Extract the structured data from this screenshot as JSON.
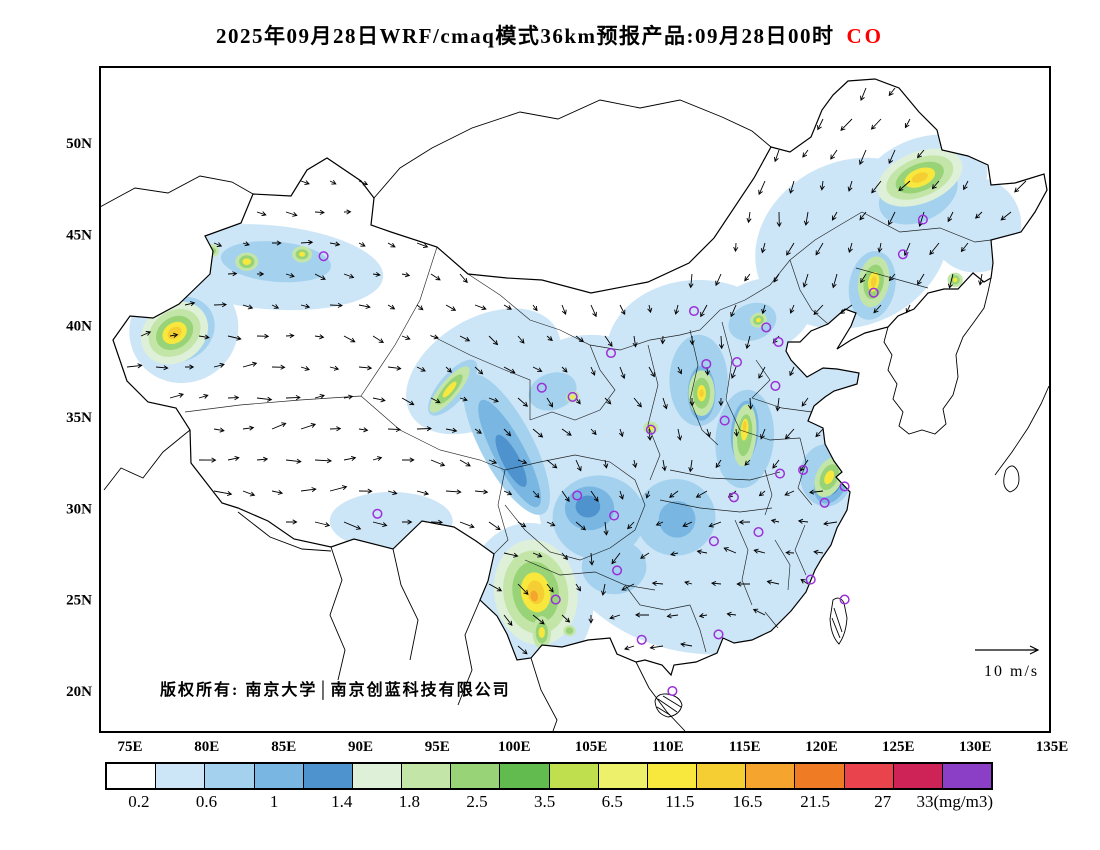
{
  "title": {
    "main": "2025年09月28日WRF/cmaq模式36km预报产品:09月28日00时",
    "species": "CO",
    "species_color": "#ff0000"
  },
  "map": {
    "copyright": "版权所有: 南京大学│南京创蓝科技有限公司",
    "wind_legend_label": "10 m/s",
    "lat_ticks": [
      "50N",
      "45N",
      "40N",
      "35N",
      "30N",
      "25N",
      "20N"
    ],
    "lon_ticks": [
      "75E",
      "80E",
      "85E",
      "90E",
      "95E",
      "100E",
      "105E",
      "110E",
      "115E",
      "120E",
      "125E",
      "130E",
      "135E"
    ],
    "marker_color": "#9b30d9"
  },
  "colorbar": {
    "labels": [
      "0.2",
      "0.6",
      "1",
      "1.4",
      "1.8",
      "2.5",
      "3.5",
      "6.5",
      "11.5",
      "16.5",
      "21.5",
      "27",
      "33(mg/m3)"
    ],
    "units": "mg/m3",
    "colors": [
      "#ffffff",
      "#cde6f7",
      "#a4d2ee",
      "#79b7e2",
      "#4e93ce",
      "#dff0d8",
      "#c3e6a8",
      "#98d378",
      "#62bb4e",
      "#bfdf4f",
      "#edf06b",
      "#f8e83e",
      "#f5ce33",
      "#f5a52e",
      "#ef7b24",
      "#e9434e",
      "#ce2357",
      "#8b3fc6"
    ]
  },
  "chart_data": {
    "type": "heatmap",
    "title": "2025年09月28日WRF/cmaq模式36km预报产品:09月28日00时 CO",
    "pollutant": "CO",
    "units": "mg/m3",
    "model": "WRF/cmaq 36km",
    "valid_time": "09月28日00时",
    "run_date": "2025年09月28日",
    "lon_range": [
      73,
      135
    ],
    "lat_range": [
      17.8,
      54.2
    ],
    "contour_levels": [
      0.2,
      0.6,
      1,
      1.4,
      1.8,
      2.5,
      3.5,
      6.5,
      11.5,
      16.5,
      21.5,
      27,
      33
    ],
    "wind_reference_ms": 10,
    "shaded_regions": [
      [
        1,
        113,
        31,
        11.5,
        9,
        0
      ],
      [
        1,
        117,
        26,
        5,
        4,
        0
      ],
      [
        1,
        122,
        44.5,
        6.5,
        4.5,
        -25
      ],
      [
        1,
        126.5,
        47.6,
        4.5,
        2.6,
        -25
      ],
      [
        1,
        112,
        38.5,
        6,
        4,
        0
      ],
      [
        1,
        84,
        43.2,
        7.5,
        2.3,
        5
      ],
      [
        1,
        78.5,
        39.8,
        3.6,
        2.9,
        -35
      ],
      [
        1,
        98,
        37.5,
        5.5,
        2.9,
        -31
      ],
      [
        1,
        101,
        25,
        4.2,
        4.2,
        0
      ],
      [
        1,
        92,
        29.3,
        4,
        1.6,
        0
      ],
      [
        1,
        105,
        34.5,
        6,
        5,
        0
      ],
      [
        1,
        119,
        33,
        4,
        5,
        0
      ],
      [
        1,
        130,
        45.5,
        3,
        2.6,
        0
      ],
      [
        1,
        116,
        40.5,
        3.5,
        2,
        -20
      ],
      [
        1,
        120.5,
        36.8,
        2.5,
        2,
        0
      ],
      [
        2,
        105.5,
        29.5,
        3,
        2.3,
        0
      ],
      [
        2,
        99.5,
        33.5,
        1.7,
        4.3,
        -28
      ],
      [
        2,
        112,
        37,
        1.9,
        2.5,
        0
      ],
      [
        2,
        115,
        33.8,
        1.9,
        2.7,
        5
      ],
      [
        2,
        120.3,
        31.8,
        1.7,
        1.7,
        0
      ],
      [
        2,
        126.3,
        47.2,
        2.7,
        1.5,
        -25
      ],
      [
        2,
        123.3,
        42.2,
        1.5,
        1.9,
        10
      ],
      [
        2,
        84.5,
        43.5,
        3.6,
        1.1,
        5
      ],
      [
        2,
        78.3,
        39.8,
        2.3,
        1.7,
        -35
      ],
      [
        2,
        101.4,
        25.2,
        2.5,
        2.7,
        -10
      ],
      [
        2,
        106.5,
        26.8,
        2.1,
        1.5,
        0
      ],
      [
        2,
        110.5,
        29.5,
        2.6,
        2.1,
        0
      ],
      [
        2,
        96,
        36.6,
        0.9,
        1.9,
        40
      ],
      [
        2,
        115.5,
        40.2,
        1.6,
        1,
        -20
      ],
      [
        2,
        102.5,
        36.4,
        1.6,
        1,
        -20
      ],
      [
        3,
        104.9,
        30,
        1.6,
        1.2,
        0
      ],
      [
        3,
        99.7,
        33,
        1,
        3.3,
        -28
      ],
      [
        3,
        126.4,
        47.8,
        1.7,
        0.8,
        -22
      ],
      [
        3,
        78,
        39.7,
        1.5,
        1.1,
        -35
      ],
      [
        3,
        101.5,
        25.3,
        1.7,
        1.9,
        -10
      ],
      [
        3,
        120.6,
        31.4,
        1,
        1.2,
        25
      ],
      [
        3,
        112.2,
        36.3,
        0.9,
        1.5,
        0
      ],
      [
        3,
        123.4,
        42.3,
        0.8,
        1.2,
        10
      ],
      [
        3,
        115,
        34.2,
        0.9,
        1.7,
        5
      ],
      [
        3,
        110.6,
        29.4,
        1.2,
        1,
        0
      ],
      [
        4,
        99.8,
        32.6,
        0.55,
        1.6,
        -28
      ],
      [
        4,
        104.8,
        30.1,
        0.8,
        0.6,
        0
      ],
      [
        4,
        120.7,
        31.3,
        0.5,
        0.6,
        25
      ],
      [
        5,
        77.9,
        39.6,
        2.3,
        1.6,
        -35
      ],
      [
        6,
        77.9,
        39.6,
        1.8,
        1.2,
        -35
      ],
      [
        7,
        77.9,
        39.6,
        1.3,
        0.85,
        -35
      ],
      [
        11,
        77.9,
        39.6,
        0.85,
        0.55,
        -35
      ],
      [
        12,
        77.9,
        39.6,
        0.5,
        0.3,
        -35
      ],
      [
        6,
        82.6,
        43.5,
        0.75,
        0.5,
        0
      ],
      [
        7,
        82.6,
        43.5,
        0.5,
        0.35,
        0
      ],
      [
        11,
        82.6,
        43.5,
        0.28,
        0.18,
        0
      ],
      [
        6,
        86.2,
        43.9,
        0.65,
        0.45,
        0
      ],
      [
        7,
        86.2,
        43.9,
        0.42,
        0.28,
        0
      ],
      [
        11,
        86.2,
        43.9,
        0.2,
        0.13,
        0
      ],
      [
        6,
        80.3,
        44.1,
        0.5,
        0.35,
        0
      ],
      [
        7,
        80.3,
        44.1,
        0.3,
        0.2,
        0
      ],
      [
        5,
        126.4,
        48.1,
        2.9,
        1.4,
        -22
      ],
      [
        6,
        126.4,
        48.1,
        2.3,
        1.05,
        -22
      ],
      [
        7,
        126.4,
        48.1,
        1.65,
        0.75,
        -22
      ],
      [
        11,
        126.4,
        48.1,
        1.05,
        0.48,
        -22
      ],
      [
        12,
        126.4,
        48.1,
        0.55,
        0.25,
        -22
      ],
      [
        6,
        123.4,
        42.4,
        1.0,
        1.4,
        10
      ],
      [
        7,
        123.4,
        42.4,
        0.65,
        0.95,
        10
      ],
      [
        11,
        123.4,
        42.4,
        0.35,
        0.55,
        10
      ],
      [
        12,
        123.4,
        42.4,
        0.18,
        0.3,
        10
      ],
      [
        6,
        128.7,
        42.5,
        0.5,
        0.4,
        0
      ],
      [
        7,
        128.7,
        42.5,
        0.3,
        0.25,
        0
      ],
      [
        11,
        128.7,
        42.5,
        0.14,
        0.12,
        0
      ],
      [
        6,
        115.9,
        40.3,
        0.55,
        0.4,
        -20
      ],
      [
        7,
        115.9,
        40.3,
        0.35,
        0.25,
        -20
      ],
      [
        11,
        115.9,
        40.3,
        0.16,
        0.12,
        -20
      ],
      [
        6,
        112.2,
        36.3,
        0.85,
        1.25,
        0
      ],
      [
        7,
        112.2,
        36.3,
        0.55,
        0.85,
        0
      ],
      [
        11,
        112.2,
        36.3,
        0.28,
        0.45,
        0
      ],
      [
        12,
        112.2,
        36.3,
        0.14,
        0.22,
        0
      ],
      [
        6,
        95.8,
        36.5,
        0.6,
        1.6,
        40
      ],
      [
        7,
        95.8,
        36.5,
        0.38,
        1.05,
        40
      ],
      [
        11,
        95.8,
        36.5,
        0.2,
        0.55,
        40
      ],
      [
        6,
        115,
        34,
        0.75,
        1.7,
        5
      ],
      [
        7,
        115,
        34,
        0.48,
        1.15,
        5
      ],
      [
        11,
        115,
        34.3,
        0.24,
        0.6,
        5
      ],
      [
        12,
        115,
        34.5,
        0.12,
        0.3,
        5
      ],
      [
        6,
        120.5,
        31.7,
        0.85,
        1.15,
        25
      ],
      [
        7,
        120.5,
        31.7,
        0.55,
        0.75,
        25
      ],
      [
        11,
        120.5,
        31.7,
        0.28,
        0.4,
        25
      ],
      [
        6,
        108.9,
        34.4,
        0.5,
        0.35,
        0
      ],
      [
        11,
        108.9,
        34.4,
        0.18,
        0.12,
        0
      ],
      [
        6,
        103.8,
        36.1,
        0.45,
        0.3,
        -20
      ],
      [
        11,
        103.8,
        36.1,
        0.15,
        0.1,
        -20
      ],
      [
        5,
        101.4,
        25.4,
        2.7,
        2.9,
        -10
      ],
      [
        6,
        101.4,
        25.4,
        2.1,
        2.3,
        -10
      ],
      [
        7,
        101.4,
        25.4,
        1.5,
        1.7,
        -10
      ],
      [
        11,
        101.4,
        25.4,
        0.95,
        1.1,
        -10
      ],
      [
        12,
        101.4,
        25.4,
        0.55,
        0.65,
        -10
      ],
      [
        13,
        101.3,
        25.2,
        0.25,
        0.3,
        -10
      ],
      [
        6,
        101.8,
        23.2,
        0.6,
        0.9,
        0
      ],
      [
        7,
        101.8,
        23.2,
        0.4,
        0.6,
        0
      ],
      [
        11,
        101.8,
        23.2,
        0.2,
        0.3,
        0
      ],
      [
        6,
        103.6,
        23.3,
        0.4,
        0.3,
        0
      ],
      [
        7,
        103.6,
        23.3,
        0.24,
        0.18,
        0
      ]
    ],
    "city_markers": [
      [
        87.6,
        43.8
      ],
      [
        126.6,
        45.8
      ],
      [
        125.3,
        43.9
      ],
      [
        123.4,
        41.8
      ],
      [
        111.7,
        40.8
      ],
      [
        116.4,
        39.9
      ],
      [
        117.2,
        39.1
      ],
      [
        114.5,
        38.0
      ],
      [
        112.5,
        37.9
      ],
      [
        117.0,
        36.7
      ],
      [
        106.3,
        38.5
      ],
      [
        103.8,
        36.1
      ],
      [
        101.8,
        36.6
      ],
      [
        108.9,
        34.3
      ],
      [
        113.7,
        34.8
      ],
      [
        117.3,
        31.9
      ],
      [
        118.8,
        32.1
      ],
      [
        121.5,
        31.2
      ],
      [
        120.2,
        30.3
      ],
      [
        114.3,
        30.6
      ],
      [
        104.1,
        30.7
      ],
      [
        106.5,
        29.6
      ],
      [
        113.0,
        28.2
      ],
      [
        115.9,
        28.7
      ],
      [
        106.7,
        26.6
      ],
      [
        102.7,
        25.0
      ],
      [
        119.3,
        26.1
      ],
      [
        113.3,
        23.1
      ],
      [
        108.3,
        22.8
      ],
      [
        110.3,
        20.0
      ],
      [
        91.1,
        29.7
      ],
      [
        121.5,
        25.0
      ]
    ]
  }
}
